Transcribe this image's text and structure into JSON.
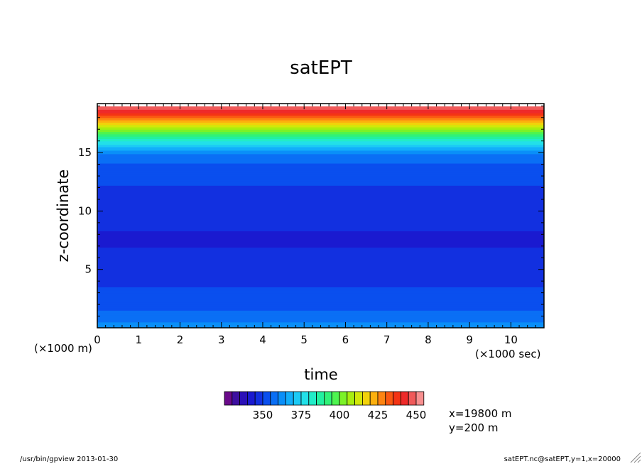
{
  "chart_data": {
    "type": "heatmap",
    "title": "satEPT",
    "xlabel": "time",
    "ylabel": "z-coordinate",
    "x_unit_label": "(×1000 sec)",
    "y_unit_label": "(×1000 m)",
    "xlim": [
      0,
      10.8
    ],
    "ylim": [
      0,
      19.2
    ],
    "x_ticks": [
      "0",
      "1",
      "2",
      "3",
      "4",
      "5",
      "6",
      "7",
      "8",
      "9",
      "10"
    ],
    "y_ticks": [
      "5",
      "10",
      "15"
    ],
    "colorbar": {
      "min": 325,
      "step": 5,
      "colors": [
        "#6a0a8a",
        "#3d0fa0",
        "#2b10b8",
        "#1a1ad0",
        "#1230e0",
        "#0a4fee",
        "#0a6ff5",
        "#0a8ff8",
        "#12aefa",
        "#1ccaf5",
        "#22e0e8",
        "#22ecc8",
        "#22f0a0",
        "#30f278",
        "#4ef450",
        "#7cf228",
        "#a8ee10",
        "#d2e80a",
        "#f2d20a",
        "#fcb00e",
        "#fd8412",
        "#fa5812",
        "#f43414",
        "#ee2a2a",
        "#f05a5a",
        "#f89090"
      ],
      "tick_labels": [
        "350",
        "375",
        "400",
        "425",
        "450"
      ],
      "tick_values": [
        350,
        375,
        400,
        425,
        450
      ]
    },
    "profile": [
      {
        "z": 0.2,
        "value": 364
      },
      {
        "z": 0.6,
        "value": 359
      },
      {
        "z": 1.2,
        "value": 356
      },
      {
        "z": 2.5,
        "value": 351
      },
      {
        "z": 4.5,
        "value": 349
      },
      {
        "z": 7.5,
        "value": 344
      },
      {
        "z": 11.5,
        "value": 349
      },
      {
        "z": 13.5,
        "value": 352
      },
      {
        "z": 14.8,
        "value": 358
      },
      {
        "z": 15.5,
        "value": 370
      },
      {
        "z": 16.5,
        "value": 392
      },
      {
        "z": 17.5,
        "value": 418
      },
      {
        "z": 18.4,
        "value": 440
      },
      {
        "z": 19.0,
        "value": 450
      }
    ],
    "annotations": [
      "x=19800 m",
      "y=200 m"
    ]
  },
  "footer": {
    "left": "/usr/bin/gpview  2013-01-30",
    "right": "satEPT.nc@satEPT,y=1,x=20000"
  }
}
